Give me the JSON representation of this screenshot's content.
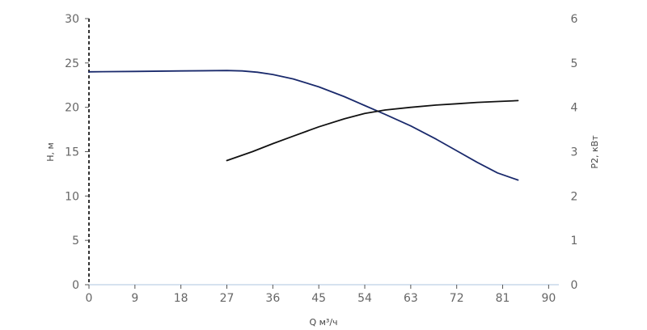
{
  "chart_data": {
    "type": "line",
    "title": "",
    "xlabel": "Q м³/ч",
    "ylabel": "H, м",
    "y2label": "P2, кВт",
    "xlim": [
      0,
      92
    ],
    "ylim": [
      0,
      30
    ],
    "y2lim": [
      0,
      6
    ],
    "x_ticks": [
      "0",
      "9",
      "18",
      "27",
      "36",
      "45",
      "54",
      "63",
      "72",
      "81",
      "90"
    ],
    "y_ticks": [
      "0",
      "5",
      "10",
      "15",
      "20",
      "25",
      "30"
    ],
    "y2_ticks": [
      "0",
      "1",
      "2",
      "3",
      "4",
      "5",
      "6"
    ],
    "grid": false,
    "series": [
      {
        "axis": "left",
        "color": "#1a2a6c",
        "points": [
          [
            0,
            24.0
          ],
          [
            9,
            24.05
          ],
          [
            18,
            24.1
          ],
          [
            27,
            24.15
          ],
          [
            30,
            24.1
          ],
          [
            33,
            23.95
          ],
          [
            36,
            23.7
          ],
          [
            40,
            23.2
          ],
          [
            45,
            22.3
          ],
          [
            50,
            21.2
          ],
          [
            54,
            20.2
          ],
          [
            58,
            19.2
          ],
          [
            63,
            17.9
          ],
          [
            68,
            16.4
          ],
          [
            72,
            15.1
          ],
          [
            76,
            13.8
          ],
          [
            80,
            12.6
          ],
          [
            84,
            11.8
          ]
        ]
      },
      {
        "axis": "right",
        "color": "#111111",
        "points": [
          [
            27,
            2.8
          ],
          [
            32,
            3.0
          ],
          [
            36,
            3.18
          ],
          [
            40,
            3.35
          ],
          [
            45,
            3.56
          ],
          [
            50,
            3.74
          ],
          [
            54,
            3.86
          ],
          [
            58,
            3.94
          ],
          [
            63,
            4.0
          ],
          [
            68,
            4.05
          ],
          [
            72,
            4.08
          ],
          [
            76,
            4.11
          ],
          [
            80,
            4.13
          ],
          [
            84,
            4.15
          ]
        ]
      }
    ]
  }
}
